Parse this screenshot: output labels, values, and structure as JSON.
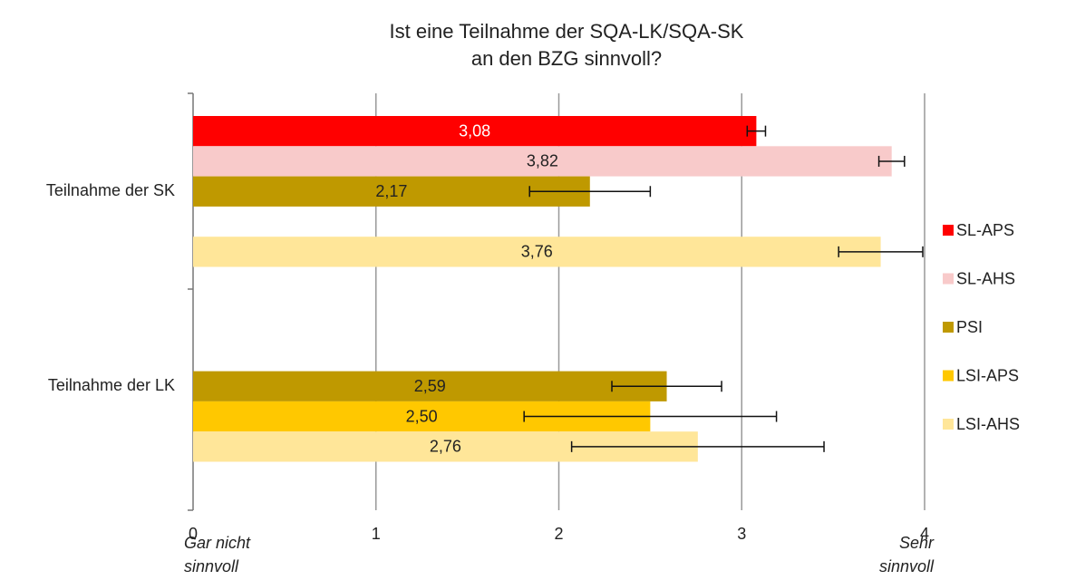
{
  "chart_data": {
    "type": "bar",
    "orientation": "horizontal",
    "title": [
      "Ist eine Teilnahme der SQA-LK/SQA-SK",
      "an den BZG sinnvoll?"
    ],
    "categories": [
      "Teilnahme der SK",
      "Teilnahme der LK"
    ],
    "series": [
      {
        "name": "SL-APS",
        "color": "#ff0000",
        "values": [
          3.08,
          null
        ],
        "value_labels": [
          "3,08",
          null
        ],
        "errors": [
          0.05,
          null
        ]
      },
      {
        "name": "SL-AHS",
        "color": "#f8caca",
        "values": [
          3.82,
          null
        ],
        "value_labels": [
          "3,82",
          null
        ],
        "errors": [
          0.07,
          null
        ]
      },
      {
        "name": "PSI",
        "color": "#bf9900",
        "values": [
          2.17,
          2.59
        ],
        "value_labels": [
          "2,17",
          "2,59"
        ],
        "errors": [
          0.33,
          0.3
        ]
      },
      {
        "name": "LSI-APS",
        "color": "#ffc800",
        "values": [
          null,
          2.5
        ],
        "value_labels": [
          null,
          "2,50"
        ],
        "errors": [
          null,
          0.69
        ]
      },
      {
        "name": "LSI-AHS",
        "color": "#ffe699",
        "values": [
          3.76,
          2.76
        ],
        "value_labels": [
          "3,76",
          "2,76"
        ],
        "errors": [
          0.23,
          0.69
        ]
      }
    ],
    "xlim": [
      0,
      4
    ],
    "xticks": [
      0,
      1,
      2,
      3,
      4
    ],
    "x_end_labels": [
      [
        "Gar nicht",
        "sinnvoll"
      ],
      [
        "Sehr",
        "sinnvoll"
      ]
    ],
    "grid": true,
    "legend": "right"
  }
}
